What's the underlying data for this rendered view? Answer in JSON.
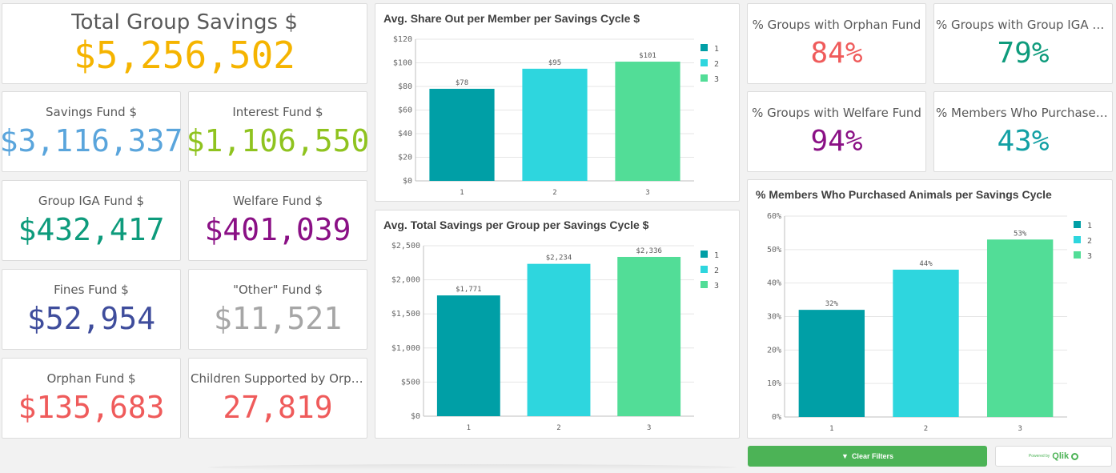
{
  "kpis": {
    "total": {
      "title": "Total Group Savings $",
      "value": "$5,256,502",
      "color": "#f5b400"
    },
    "savings": {
      "title": "Savings Fund $",
      "value": "$3,116,337",
      "color": "#5aa5dc"
    },
    "interest": {
      "title": "Interest Fund $",
      "value": "$1,106,550",
      "color": "#8fc31f"
    },
    "iga": {
      "title": "Group IGA Fund $",
      "value": "$432,417",
      "color": "#0e9b7c"
    },
    "welfare": {
      "title": "Welfare Fund $",
      "value": "$401,039",
      "color": "#8a1085"
    },
    "fines": {
      "title": "Fines Fund $",
      "value": "$52,954",
      "color": "#3f4d9c"
    },
    "other": {
      "title": "\"Other\" Fund $",
      "value": "$11,521",
      "color": "#a6a6a6"
    },
    "orphan": {
      "title": "Orphan Fund $",
      "value": "$135,683",
      "color": "#ef5b5b"
    },
    "children": {
      "title": "Children Supported by Orpha...",
      "value": "27,819",
      "color": "#ef5b5b"
    },
    "pct_orphan": {
      "title": "% Groups with Orphan Fund",
      "value": "84%",
      "color": "#ef5b5b"
    },
    "pct_iga": {
      "title": "% Groups with Group IGA Fund",
      "value": "79%",
      "color": "#0e9b7c"
    },
    "pct_welfare": {
      "title": "% Groups with Welfare Fund",
      "value": "94%",
      "color": "#8a1085"
    },
    "pct_animals": {
      "title": "% Members Who Purchased A...",
      "value": "43%",
      "color": "#12a0a4"
    }
  },
  "buttons": {
    "clear_filters": "Clear Filters",
    "powered_by": "Powered by",
    "qlik": "Qlik"
  },
  "palette": [
    "#009fa6",
    "#2ed6de",
    "#52dd97"
  ],
  "chart_data": [
    {
      "type": "bar",
      "title": "Avg. Share Out per Member per Savings Cycle $",
      "categories": [
        "1",
        "2",
        "3"
      ],
      "values": [
        78,
        95,
        101
      ],
      "data_labels": [
        "$78",
        "$95",
        "$101"
      ],
      "yticks": [
        0,
        20,
        40,
        60,
        80,
        100,
        120
      ],
      "ytick_labels": [
        "$0",
        "$20",
        "$40",
        "$60",
        "$80",
        "$100",
        "$120"
      ],
      "ylim": [
        0,
        120
      ],
      "legend": [
        "1",
        "2",
        "3"
      ],
      "legend_position": "right",
      "grid": true
    },
    {
      "type": "bar",
      "title": "Avg. Total Savings per Group per Savings Cycle $",
      "categories": [
        "1",
        "2",
        "3"
      ],
      "values": [
        1771,
        2234,
        2336
      ],
      "data_labels": [
        "$1,771",
        "$2,234",
        "$2,336"
      ],
      "yticks": [
        0,
        500,
        1000,
        1500,
        2000,
        2500
      ],
      "ytick_labels": [
        "$0",
        "$500",
        "$1,000",
        "$1,500",
        "$2,000",
        "$2,500"
      ],
      "ylim": [
        0,
        2500
      ],
      "legend": [
        "1",
        "2",
        "3"
      ],
      "legend_position": "right",
      "grid": true
    },
    {
      "type": "bar",
      "title": "% Members Who Purchased Animals per Savings Cycle",
      "categories": [
        "1",
        "2",
        "3"
      ],
      "values": [
        32,
        44,
        53
      ],
      "data_labels": [
        "32%",
        "44%",
        "53%"
      ],
      "yticks": [
        0,
        10,
        20,
        30,
        40,
        50,
        60
      ],
      "ytick_labels": [
        "0%",
        "10%",
        "20%",
        "30%",
        "40%",
        "50%",
        "60%"
      ],
      "ylim": [
        0,
        60
      ],
      "legend": [
        "1",
        "2",
        "3"
      ],
      "legend_position": "right",
      "grid": true
    }
  ]
}
